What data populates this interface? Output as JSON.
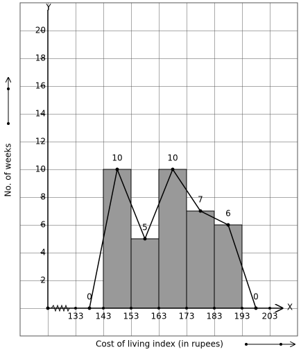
{
  "chart_data": {
    "type": "histogram",
    "x_label": "Cost of living index (in rupees)",
    "y_label": "No. of weeks",
    "x_axis_letter": "X",
    "y_axis_letter": "Y",
    "bins": [
      143,
      153,
      163,
      173,
      183,
      193
    ],
    "values": [
      10,
      5,
      10,
      7,
      6
    ],
    "color": "#999999",
    "polygon_x": [
      138,
      148,
      158,
      168,
      178,
      188,
      198
    ],
    "polygon_values": [
      0,
      10,
      5,
      10,
      7,
      6,
      0
    ],
    "xlim": [
      113,
      213
    ],
    "ylim": [
      -2,
      22
    ],
    "xticks": [
      133,
      143,
      153,
      163,
      173,
      183,
      193,
      203
    ],
    "yticks": [
      2,
      4,
      6,
      8,
      10,
      12,
      14,
      16,
      18,
      20
    ]
  }
}
